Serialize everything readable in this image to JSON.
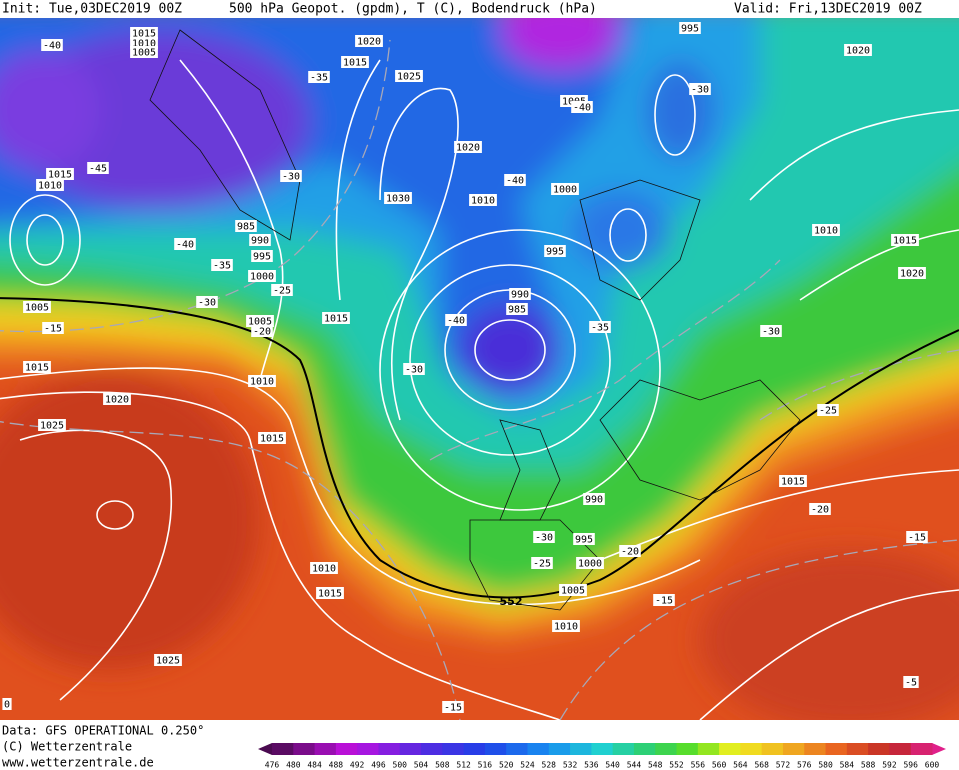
{
  "header": {
    "init": "Init: Tue,03DEC2019 00Z",
    "title": "500 hPa Geopot. (gpdm), T (C), Bodendruck (hPa)",
    "valid": "Valid: Fri,13DEC2019 00Z"
  },
  "map": {
    "isobar_labels": [
      "1015",
      "1010",
      "1005",
      "1020",
      "1015",
      "1025",
      "995",
      "1020",
      "1005",
      "1020",
      "1010",
      "1030",
      "1000",
      "1015",
      "1010",
      "985",
      "990",
      "995",
      "1000",
      "1005",
      "995",
      "990",
      "985",
      "1015",
      "1010",
      "1015",
      "1020",
      "1005",
      "1015",
      "1020",
      "1025",
      "1010",
      "1015",
      "990",
      "995",
      "1000",
      "1005",
      "1010",
      "1010",
      "1015",
      "1025",
      "1015"
    ],
    "temperature_labels": [
      "-40",
      "-45",
      "-35",
      "-30",
      "-40",
      "-35",
      "-30",
      "-25",
      "-20",
      "-15",
      "-40",
      "-40",
      "-30",
      "-35",
      "-30",
      "-30",
      "-40",
      "-25",
      "-20",
      "-15",
      "-30",
      "-25",
      "-20",
      "-15",
      "-15",
      "-5",
      "0"
    ],
    "contour_label": "552"
  },
  "footer": {
    "data": "Data: GFS OPERATIONAL 0.250°",
    "copyright": "(C) Wetterzentrale",
    "url": "www.wetterzentrale.de"
  },
  "colorbar": {
    "levels": [
      476,
      480,
      484,
      488,
      492,
      496,
      500,
      504,
      508,
      512,
      516,
      520,
      524,
      528,
      532,
      536,
      540,
      544,
      548,
      552,
      556,
      560,
      564,
      568,
      572,
      576,
      580,
      584,
      588,
      592,
      596,
      600
    ]
  }
}
